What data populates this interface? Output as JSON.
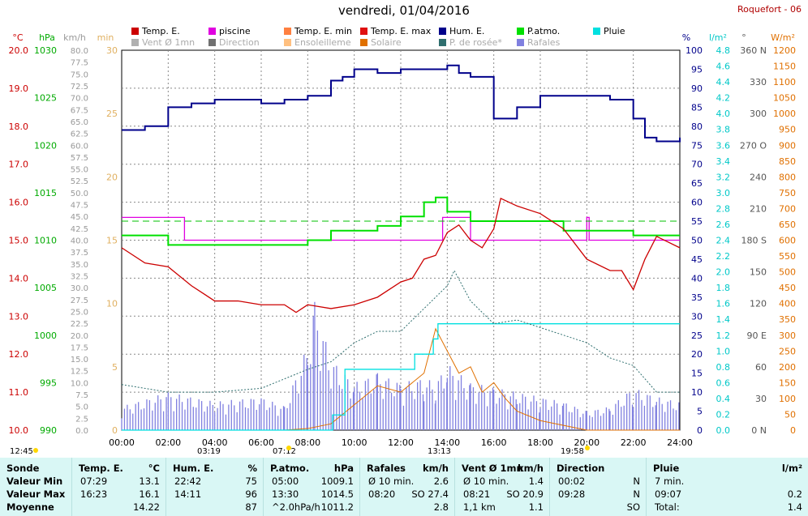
{
  "title": "vendredi, 01/04/2016",
  "station": "Roquefort - 06",
  "legend": [
    {
      "id": "temp",
      "label": "Temp. E.",
      "color": "#cc0000"
    },
    {
      "id": "piscine",
      "label": "piscine",
      "color": "#e000e0"
    },
    {
      "id": "tmin",
      "label": "Temp. E. min",
      "color": "#ff8040"
    },
    {
      "id": "tmax",
      "label": "Temp. E. max",
      "color": "#e01010"
    },
    {
      "id": "hum",
      "label": "Hum. E.",
      "color": "#00008b"
    },
    {
      "id": "patmo",
      "label": "P.atmo.",
      "color": "#00e000"
    },
    {
      "id": "pluie",
      "label": "Pluie",
      "color": "#00e0e0"
    },
    {
      "id": "vent",
      "label": "Vent Ø 1mn",
      "color": "#b0b0b0"
    },
    {
      "id": "dir",
      "label": "Direction",
      "color": "#707070"
    },
    {
      "id": "ensol",
      "label": "Ensoleilleme",
      "color": "#ffc080"
    },
    {
      "id": "solaire",
      "label": "Solaire",
      "color": "#e07000"
    },
    {
      "id": "rosee",
      "label": "P. de rosée*",
      "color": "#2f6f6f"
    },
    {
      "id": "rafales",
      "label": "Rafales",
      "color": "#8080e0"
    }
  ],
  "axes": {
    "temp": {
      "unit": "°C",
      "ticks": [
        "20.0",
        "19.0",
        "18.0",
        "17.0",
        "16.0",
        "15.0",
        "14.0",
        "13.0",
        "12.0",
        "11.0",
        "10.0"
      ],
      "color": "#cc0000"
    },
    "pres": {
      "unit": "hPa",
      "ticks": [
        "1030",
        "1025",
        "1020",
        "1015",
        "1010",
        "1005",
        "1000",
        "995",
        "990"
      ],
      "color": "#00aa00"
    },
    "wind": {
      "unit": "km/h",
      "ticks": [
        "80.0",
        "77.5",
        "75.0",
        "72.5",
        "70.0",
        "67.5",
        "65.0",
        "62.5",
        "60.0",
        "57.5",
        "55.0",
        "52.5",
        "50.0",
        "47.5",
        "45.0",
        "42.5",
        "40.0",
        "37.5",
        "35.0",
        "32.5",
        "30.0",
        "27.5",
        "25.0",
        "22.5",
        "20.0",
        "17.5",
        "15.0",
        "12.5",
        "10.0",
        "7.5",
        "5.0",
        "2.5",
        "0.0"
      ],
      "color": "#999999"
    },
    "sun": {
      "unit": "min",
      "ticks": [
        "30",
        "25",
        "20",
        "15",
        "10",
        "5",
        "0"
      ],
      "color": "#e0b060"
    },
    "hum": {
      "unit": "%",
      "ticks": [
        "100",
        "95",
        "90",
        "85",
        "80",
        "75",
        "70",
        "65",
        "60",
        "55",
        "50",
        "45",
        "40",
        "35",
        "30",
        "25",
        "20",
        "15",
        "10",
        "5",
        "0"
      ],
      "color": "#00008b"
    },
    "rain": {
      "unit": "l/m²",
      "ticks": [
        "4.8",
        "4.6",
        "4.4",
        "4.2",
        "4.0",
        "3.8",
        "3.6",
        "3.4",
        "3.2",
        "3.0",
        "2.8",
        "2.6",
        "2.4",
        "2.2",
        "2.0",
        "1.8",
        "1.6",
        "1.4",
        "1.2",
        "1.0",
        "0.8",
        "0.6",
        "0.4",
        "0.2",
        "0.0"
      ],
      "color": "#00c8c8"
    },
    "dir": {
      "unit": "°",
      "ticks": [
        "360 N",
        "330",
        "300",
        "270 O",
        "240",
        "210",
        "180 S",
        "150",
        "120",
        "90  E",
        "60",
        "30",
        "0  N"
      ],
      "color": "#555555"
    },
    "solar": {
      "unit": "W/m²",
      "ticks": [
        "1200",
        "1150",
        "1100",
        "1050",
        "1000",
        "950",
        "900",
        "850",
        "800",
        "750",
        "700",
        "650",
        "600",
        "550",
        "500",
        "450",
        "400",
        "350",
        "300",
        "250",
        "200",
        "150",
        "100",
        "50",
        "0"
      ],
      "color": "#e07000"
    },
    "time": [
      "00:00",
      "02:00",
      "04:00",
      "06:00",
      "08:00",
      "10:00",
      "12:00",
      "14:00",
      "16:00",
      "18:00",
      "20:00",
      "22:00",
      "24:00"
    ]
  },
  "sun_events": {
    "moonset": "12:45",
    "sunrise": "07:12",
    "solar_noon": "13:13",
    "sunset": "19:58",
    "moon": "03:19"
  },
  "chart_data": {
    "type": "line",
    "x_label": "heure",
    "xlim": [
      0,
      24
    ],
    "series": [
      {
        "name": "Temp. E.",
        "unit": "°C",
        "x": [
          0,
          1,
          2,
          3,
          4,
          5,
          6,
          7,
          7.5,
          8,
          9,
          10,
          11,
          12,
          12.5,
          13,
          13.5,
          14,
          14.5,
          15,
          15.5,
          16,
          16.3,
          17,
          18,
          19,
          20,
          21,
          21.5,
          22,
          22.5,
          23,
          24
        ],
        "y": [
          14.8,
          14.4,
          14.3,
          13.8,
          13.4,
          13.4,
          13.3,
          13.3,
          13.1,
          13.3,
          13.2,
          13.3,
          13.5,
          13.9,
          14.0,
          14.5,
          14.6,
          15.2,
          15.4,
          15.0,
          14.8,
          15.3,
          16.1,
          15.9,
          15.7,
          15.3,
          14.5,
          14.2,
          14.2,
          13.7,
          14.5,
          15.1,
          14.8
        ]
      },
      {
        "name": "Hum. E.",
        "unit": "%",
        "x": [
          0,
          1,
          2,
          3,
          4,
          5,
          6,
          7,
          8,
          9,
          9.5,
          10,
          11,
          12,
          13,
          14,
          14.5,
          15,
          16,
          17,
          18,
          19,
          20,
          21,
          22,
          22.5,
          23,
          24
        ],
        "y": [
          79,
          80,
          85,
          86,
          87,
          87,
          86,
          87,
          88,
          92,
          93,
          95,
          94,
          95,
          95,
          96,
          94,
          93,
          82,
          85,
          88,
          88,
          88,
          87,
          82,
          77,
          76,
          77
        ]
      },
      {
        "name": "P.atmo.",
        "unit": "hPa",
        "x": [
          0,
          2,
          4,
          6,
          8,
          9,
          10,
          11,
          12,
          13,
          13.5,
          14,
          15,
          16,
          17,
          18,
          19,
          20,
          21,
          22,
          23,
          24
        ],
        "y": [
          1010.5,
          1009.5,
          1009.5,
          1009.5,
          1010,
          1011,
          1011,
          1011.5,
          1012.5,
          1014,
          1014.5,
          1013,
          1012,
          1012,
          1012,
          1012,
          1011,
          1011,
          1011,
          1010.5,
          1010.5,
          1010.5
        ]
      },
      {
        "name": "piscine",
        "unit": "°C",
        "x": [
          0,
          2.6,
          2.7,
          8,
          13.7,
          13.8,
          14.9,
          15,
          20,
          20.1,
          24
        ],
        "y": [
          15.6,
          15.6,
          15.0,
          15.0,
          15.0,
          15.6,
          15.6,
          15.0,
          15.6,
          15.0,
          15.0
        ]
      },
      {
        "name": "P. de rosée*",
        "unit": "°C",
        "x": [
          0,
          2,
          4,
          6,
          8,
          9,
          10,
          11,
          12,
          13,
          14,
          14.3,
          15,
          16,
          17,
          18,
          19,
          20,
          21,
          22,
          23,
          24
        ],
        "y": [
          11.2,
          11.0,
          11.0,
          11.1,
          11.6,
          11.8,
          12.3,
          12.6,
          12.6,
          13.2,
          13.8,
          14.2,
          13.4,
          12.8,
          12.9,
          12.7,
          12.5,
          12.3,
          11.9,
          11.7,
          11.0,
          11.0
        ]
      },
      {
        "name": "Solaire",
        "unit": "W/m²",
        "x": [
          7,
          8,
          9,
          10,
          11,
          12,
          13,
          13.5,
          14,
          14.5,
          15,
          15.5,
          16,
          16.5,
          17,
          18,
          19,
          20,
          21,
          24
        ],
        "y": [
          0,
          5,
          20,
          80,
          140,
          120,
          180,
          320,
          250,
          180,
          200,
          120,
          150,
          100,
          60,
          30,
          15,
          0,
          0,
          0
        ]
      },
      {
        "name": "Pluie",
        "unit": "l/m²",
        "x": [
          0,
          9,
          9.07,
          9.5,
          9.6,
          12.5,
          12.6,
          13.2,
          13.4,
          13.6,
          24
        ],
        "y": [
          0,
          0,
          0.2,
          0.2,
          0.8,
          0.8,
          1.0,
          1.0,
          1.2,
          1.4,
          1.4
        ]
      },
      {
        "name": "Rafales",
        "unit": "km/h",
        "x": [
          0,
          2,
          4,
          6,
          7,
          8,
          8.3,
          9,
          10,
          11,
          12,
          13,
          13.5,
          14,
          15,
          16,
          17,
          18,
          19,
          20,
          21,
          22,
          23,
          24
        ],
        "y": [
          5,
          8,
          6,
          7,
          5,
          18,
          27,
          15,
          10,
          12,
          10,
          11,
          10,
          14,
          10,
          9,
          8,
          7,
          6,
          4,
          5,
          9,
          7,
          6
        ]
      }
    ]
  },
  "stats": {
    "cols": [
      {
        "head": "Sonde",
        "unit": "",
        "rows": [
          [
            "Valeur Min"
          ],
          [
            "Valeur Max"
          ],
          [
            "Moyenne"
          ]
        ]
      },
      {
        "head": "Temp. E.",
        "unit": "°C",
        "rows": [
          [
            "07:29",
            "13.1"
          ],
          [
            "16:23",
            "16.1"
          ],
          [
            "",
            "14.22"
          ]
        ]
      },
      {
        "head": "Hum. E.",
        "unit": "%",
        "rows": [
          [
            "22:42",
            "75"
          ],
          [
            "14:11",
            "96"
          ],
          [
            "",
            "87"
          ]
        ]
      },
      {
        "head": "P.atmo.",
        "unit": "hPa",
        "rows": [
          [
            "05:00",
            "1009.1"
          ],
          [
            "13:30",
            "1014.5"
          ],
          [
            "^2.0hPa/h",
            "1011.2"
          ]
        ]
      },
      {
        "head": "Rafales",
        "unit": "km/h",
        "rows": [
          [
            "Ø 10 min.",
            "2.6"
          ],
          [
            "08:20",
            "SO 27.4"
          ],
          [
            "",
            "2.8"
          ]
        ]
      },
      {
        "head": "Vent Ø 1mn",
        "unit": "km/h",
        "rows": [
          [
            "Ø 10 min.",
            "1.4"
          ],
          [
            "08:21",
            "SO 20.9"
          ],
          [
            "1,1 km",
            "1.1"
          ]
        ]
      },
      {
        "head": "Direction",
        "unit": "",
        "rows": [
          [
            "00:02",
            "N"
          ],
          [
            "09:28",
            "N"
          ],
          [
            "",
            "SO"
          ]
        ]
      },
      {
        "head": "Pluie",
        "unit": "l/m²",
        "rows": [
          [
            "7 min.",
            ""
          ],
          [
            "09:07",
            "0.2"
          ],
          [
            "Total:",
            "1.4"
          ]
        ]
      }
    ]
  }
}
